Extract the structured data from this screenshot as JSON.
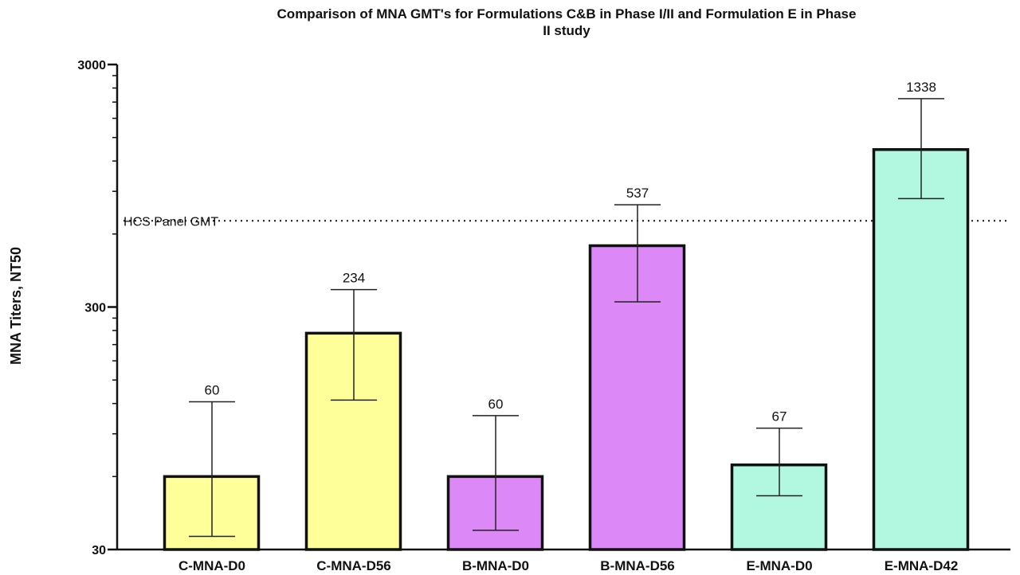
{
  "chart_data": {
    "type": "bar",
    "title_lines": [
      "Comparison of MNA GMT's for Formulations C&B in Phase I/II and Formulation E in Phase",
      "II study"
    ],
    "ylabel": "MNA Titers, NT50",
    "xlabel": "",
    "y_scale": "log",
    "ylim": [
      30,
      3000
    ],
    "y_ticks": [
      30,
      300,
      3000
    ],
    "categories": [
      "C-MNA-D0",
      "C-MNA-D56",
      "B-MNA-D0",
      "B-MNA-D56",
      "E-MNA-D0",
      "E-MNA-D42"
    ],
    "values": [
      60,
      234,
      60,
      537,
      67,
      1338
    ],
    "error_low": [
      34,
      124,
      36,
      315,
      50,
      840
    ],
    "error_high": [
      122,
      354,
      107,
      792,
      95,
      2170
    ],
    "data_labels": [
      "60",
      "234",
      "60",
      "537",
      "67",
      "1338"
    ],
    "bar_colors": [
      "#FFFF99",
      "#FFFF99",
      "#DD88F7",
      "#DD88F7",
      "#B2F7DF",
      "#B2F7DF"
    ],
    "reference_line": {
      "label": "HCS Panel GMT",
      "value": 680,
      "style": "dotted"
    },
    "grid": false,
    "legend": "none"
  }
}
